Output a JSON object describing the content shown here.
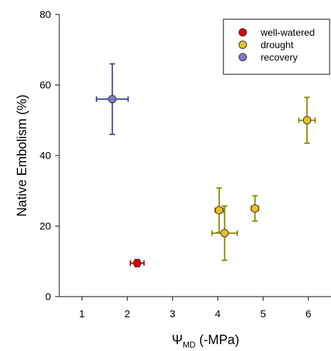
{
  "chart_data": {
    "type": "scatter",
    "xlabel": "Ψ",
    "xlabel_sub": "MD",
    "xlabel_unit": " (-MPa)",
    "ylabel": "Native Embolism (%)",
    "xlim": [
      0.5,
      6.5
    ],
    "ylim": [
      0,
      80
    ],
    "xticks": [
      "1",
      "2",
      "3",
      "4",
      "5",
      "6"
    ],
    "xtick_values": [
      1,
      2,
      3,
      4,
      5,
      6
    ],
    "yticks": [
      "0",
      "20",
      "40",
      "60",
      "80"
    ],
    "ytick_values": [
      0,
      20,
      40,
      60,
      80
    ],
    "grid": false,
    "legend_position": "top-right",
    "series": [
      {
        "name": "well-watered",
        "color": "#e00000",
        "error_color": "#c00000",
        "points": [
          {
            "x": 2.22,
            "y": 9.5,
            "xerr": 0.15,
            "yerr": 1.0
          }
        ]
      },
      {
        "name": "drought",
        "color": "#e8c020",
        "error_color": "#8a8a00",
        "points": [
          {
            "x": 4.03,
            "y": 24.5,
            "xerr": 0.09,
            "yerr": 6.3
          },
          {
            "x": 4.15,
            "y": 18.0,
            "xerr": 0.28,
            "yerr": 7.7
          },
          {
            "x": 4.82,
            "y": 25.0,
            "xerr": 0.08,
            "yerr": 3.6
          },
          {
            "x": 5.97,
            "y": 50.0,
            "xerr": 0.18,
            "yerr": 6.5
          }
        ]
      },
      {
        "name": "recovery",
        "color": "#7b7bc8",
        "error_color": "#4a4a90",
        "points": [
          {
            "x": 1.67,
            "y": 56.0,
            "xerr": 0.35,
            "yerr": 10.0
          }
        ]
      }
    ]
  }
}
